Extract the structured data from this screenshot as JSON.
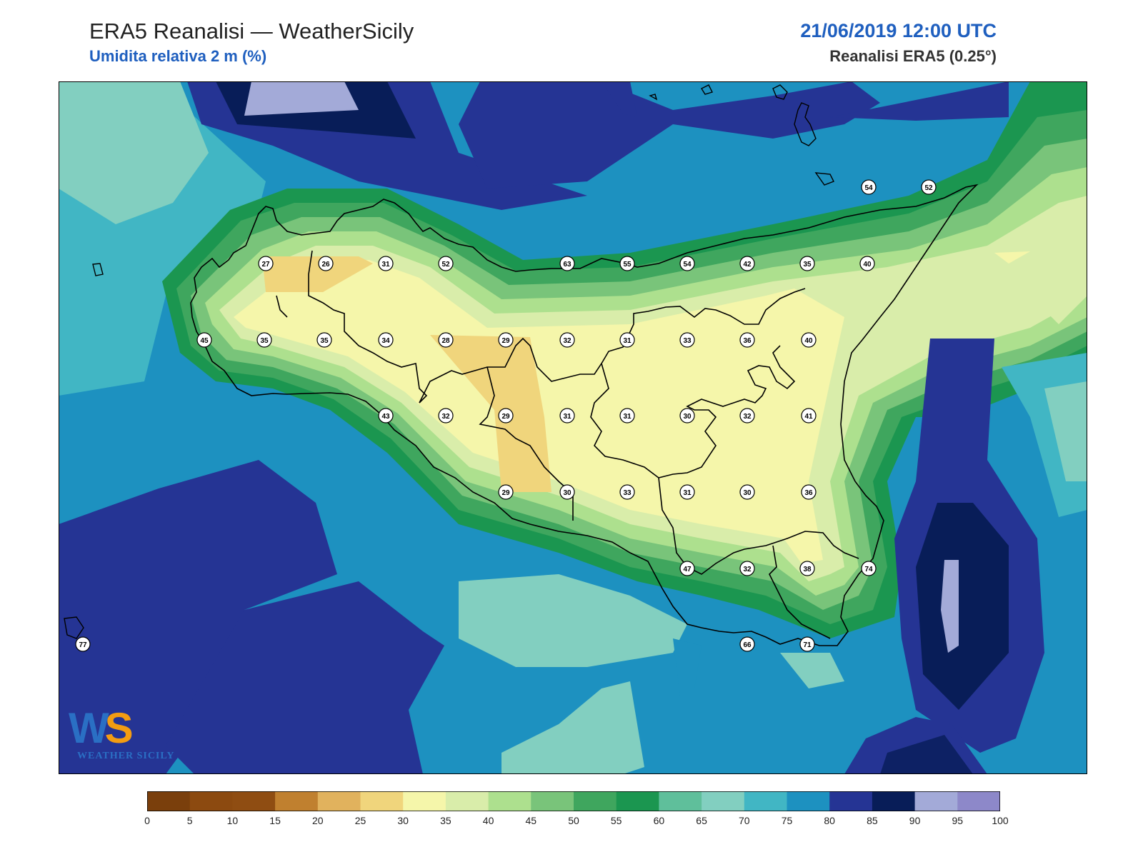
{
  "header": {
    "title": "ERA5 Reanalisi — WeatherSicily",
    "subtitle": "Umidita relativa 2 m (%)",
    "datetime": "21/06/2019 12:00 UTC",
    "source": "Reanalisi ERA5 (0.25°)"
  },
  "colorbar": {
    "ticks": [
      "0",
      "5",
      "10",
      "15",
      "20",
      "25",
      "30",
      "35",
      "40",
      "45",
      "50",
      "55",
      "60",
      "65",
      "70",
      "75",
      "80",
      "85",
      "90",
      "95",
      "100"
    ],
    "colors": [
      "#7a3f0c",
      "#8c4a10",
      "#8f4d12",
      "#c0802f",
      "#e1b25d",
      "#f0d57c",
      "#f5f6aa",
      "#d9edaa",
      "#ade08e",
      "#79c47a",
      "#3fa65e",
      "#1b9650",
      "#5fbf9b",
      "#82cfc0",
      "#41b6c4",
      "#1d91c0",
      "#253494",
      "#081d58",
      "#a3aad8",
      "#8d88c9"
    ]
  },
  "stations": [
    {
      "v": "27"
    },
    {
      "v": "26"
    },
    {
      "v": "31"
    },
    {
      "v": "52"
    },
    {
      "v": "63"
    },
    {
      "v": "55"
    },
    {
      "v": "54"
    },
    {
      "v": "42"
    },
    {
      "v": "35"
    },
    {
      "v": "40"
    },
    {
      "v": "54"
    },
    {
      "v": "52"
    },
    {
      "v": "45"
    },
    {
      "v": "35"
    },
    {
      "v": "35"
    },
    {
      "v": "34"
    },
    {
      "v": "28"
    },
    {
      "v": "29"
    },
    {
      "v": "32"
    },
    {
      "v": "31"
    },
    {
      "v": "33"
    },
    {
      "v": "36"
    },
    {
      "v": "40"
    },
    {
      "v": "43"
    },
    {
      "v": "32"
    },
    {
      "v": "29"
    },
    {
      "v": "31"
    },
    {
      "v": "31"
    },
    {
      "v": "30"
    },
    {
      "v": "32"
    },
    {
      "v": "41"
    },
    {
      "v": "29"
    },
    {
      "v": "30"
    },
    {
      "v": "33"
    },
    {
      "v": "31"
    },
    {
      "v": "30"
    },
    {
      "v": "36"
    },
    {
      "v": "47"
    },
    {
      "v": "32"
    },
    {
      "v": "38"
    },
    {
      "v": "74"
    },
    {
      "v": "77"
    },
    {
      "v": "66"
    },
    {
      "v": "71"
    }
  ],
  "logo": {
    "letters_a": "W",
    "letters_b": "S",
    "brand": "WEATHER SICILY"
  }
}
